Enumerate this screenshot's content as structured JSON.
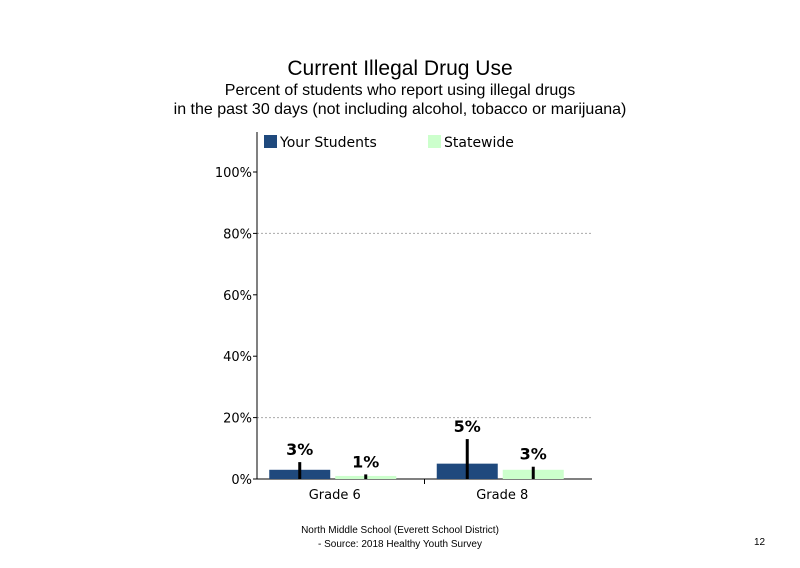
{
  "slide": {
    "title": "Current Illegal Drug Use",
    "subtitle_line1": "Percent of students who report using illegal drugs",
    "subtitle_line2": "in the past 30 days (not including alcohol, tobacco or marijuana)",
    "footer_line1": "North Middle School (Everett School District)",
    "footer_line2": "- Source: 2018 Healthy Youth Survey",
    "page_number": "12"
  },
  "chart_data": {
    "type": "bar",
    "categories": [
      "Grade 6",
      "Grade 8"
    ],
    "series": [
      {
        "name": "Your Students",
        "color": "#1f497d",
        "values": [
          3,
          5
        ],
        "labels": [
          "3%",
          "5%"
        ],
        "error_high": [
          5.5,
          13
        ]
      },
      {
        "name": "Statewide",
        "color": "#ccffcc",
        "values": [
          1,
          3
        ],
        "labels": [
          "1%",
          "3%"
        ],
        "error_high": [
          1.5,
          4
        ]
      }
    ],
    "ylim": [
      0,
      100
    ],
    "yticks": [
      0,
      20,
      40,
      60,
      80,
      100
    ],
    "ytick_labels": [
      "0%",
      "20%",
      "40%",
      "60%",
      "80%",
      "100%"
    ],
    "gridlines": [
      20,
      80
    ],
    "legend_position": "top"
  }
}
